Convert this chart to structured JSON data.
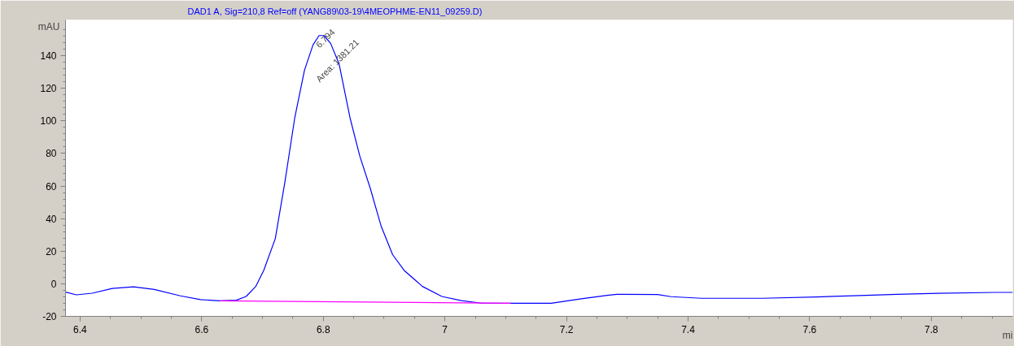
{
  "chart_data": {
    "type": "line",
    "title": "DAD1 A, Sig=210,8 Ref=off (YANG89\\03-19\\4MEOPHME-EN11_09259.D)",
    "xlabel": "mi",
    "ylabel": "mAU",
    "xlim": [
      6.376,
      7.934
    ],
    "ylim": [
      -20,
      162
    ],
    "xticks": [
      6.4,
      6.6,
      6.8,
      7,
      7.2,
      7.4,
      7.6,
      7.8
    ],
    "yticks": [
      -20,
      0,
      20,
      40,
      60,
      80,
      100,
      120,
      140
    ],
    "grid": false,
    "marker": "none",
    "line_style": "solid",
    "series": [
      {
        "color": "#0000ff",
        "x": [
          6.376,
          6.394,
          6.42,
          6.453,
          6.488,
          6.522,
          6.565,
          6.598,
          6.63,
          6.657,
          6.673,
          6.689,
          6.702,
          6.721,
          6.737,
          6.753,
          6.769,
          6.783,
          6.793,
          6.801,
          6.812,
          6.826,
          6.844,
          6.86,
          6.877,
          6.895,
          6.914,
          6.933,
          6.963,
          6.995,
          7.027,
          7.06,
          7.108,
          7.175,
          7.222,
          7.267,
          7.283,
          7.35,
          7.372,
          7.422,
          7.522,
          7.611,
          7.672,
          7.744,
          7.811,
          7.906,
          7.934
        ],
        "values": [
          -5.1,
          -6.8,
          -5.8,
          -2.9,
          -1.9,
          -3.5,
          -7.4,
          -9.7,
          -10.5,
          -10.1,
          -7.8,
          -1.6,
          8.2,
          27.7,
          62.8,
          101.8,
          131,
          146.6,
          152.4,
          152.4,
          147.6,
          134.9,
          101.8,
          78.4,
          58.9,
          35.5,
          17.9,
          8.2,
          -1.6,
          -7.8,
          -10.3,
          -11.9,
          -12,
          -12,
          -9.3,
          -7.1,
          -6.5,
          -6.6,
          -7.9,
          -8.9,
          -8.9,
          -8.1,
          -7.3,
          -6.5,
          -5.9,
          -5.3,
          -5.3
        ]
      },
      {
        "color": "#ff00ff",
        "x": [
          6.63,
          7.108
        ],
        "values": [
          -10.5,
          -12
        ]
      }
    ],
    "annotations": [
      {
        "text": "6.794",
        "x": 6.794,
        "y": 152.4
      },
      {
        "text": "Area: 1381.21",
        "x": 6.794,
        "y": 152.4
      }
    ]
  }
}
